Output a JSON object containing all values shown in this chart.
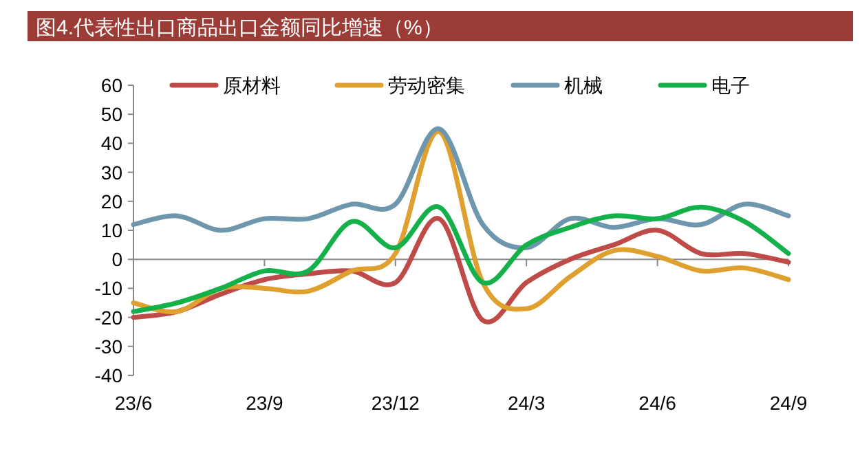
{
  "chart_data": {
    "type": "line",
    "title": "图4.代表性出口商品出口金额同比增速（%）",
    "categories": [
      "23/6",
      null,
      null,
      "23/9",
      null,
      null,
      "23/12",
      null,
      null,
      "24/3",
      null,
      null,
      "24/6",
      null,
      null,
      "24/9"
    ],
    "series": [
      {
        "name": "原材料",
        "color": "#be4b48",
        "values": [
          -20,
          -18,
          -12,
          -7,
          -5,
          -4,
          -8,
          14,
          -21,
          -8,
          0,
          5,
          10,
          2,
          2,
          -1
        ]
      },
      {
        "name": "劳动密集",
        "color": "#e0a030",
        "values": [
          -15,
          -18,
          -10,
          -10,
          -11,
          -4,
          2,
          44,
          -8,
          -17,
          -6,
          3,
          1,
          -4,
          -3,
          -7
        ]
      },
      {
        "name": "机械",
        "color": "#6e97ad",
        "values": [
          12,
          15,
          10,
          14,
          14,
          19,
          19,
          45,
          12,
          4,
          14,
          11,
          14,
          12,
          19,
          15
        ]
      },
      {
        "name": "电子",
        "color": "#14b14a",
        "values": [
          -18,
          -15,
          -10,
          -4,
          -4,
          13,
          4,
          18,
          -8,
          5,
          11,
          15,
          14,
          18,
          13,
          2
        ]
      }
    ],
    "ylim": [
      -40,
      60
    ],
    "yticks": [
      -40,
      -30,
      -20,
      -10,
      0,
      10,
      20,
      30,
      40,
      50,
      60
    ],
    "legend": "top"
  }
}
